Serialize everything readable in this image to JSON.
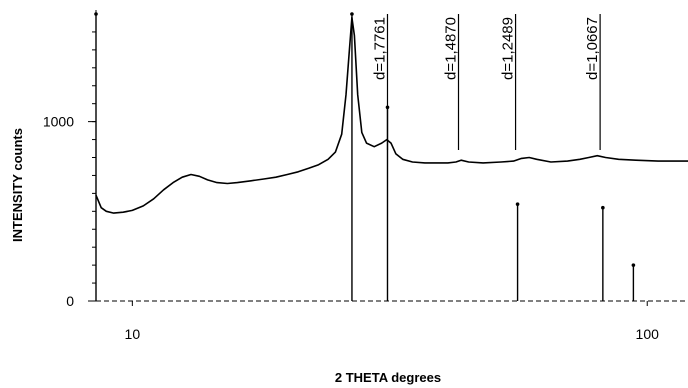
{
  "chart_data": {
    "type": "line",
    "xlabel": "2 THETA degrees",
    "ylabel": "INTENSITY counts",
    "xscale": "log",
    "xlim": [
      8.5,
      120
    ],
    "ylim": [
      0,
      1600
    ],
    "x_ticks": [
      {
        "value": 10,
        "label": "10"
      },
      {
        "value": 100,
        "label": "100"
      }
    ],
    "y_ticks": [
      {
        "value": 0,
        "label": "0"
      },
      {
        "value": 1000,
        "label": "1000"
      }
    ],
    "series": [
      {
        "points": [
          [
            8.5,
            590
          ],
          [
            8.7,
            520
          ],
          [
            8.9,
            500
          ],
          [
            9.2,
            490
          ],
          [
            9.6,
            495
          ],
          [
            10.0,
            505
          ],
          [
            10.5,
            530
          ],
          [
            11.0,
            570
          ],
          [
            11.5,
            620
          ],
          [
            12.0,
            660
          ],
          [
            12.5,
            690
          ],
          [
            13.0,
            705
          ],
          [
            13.5,
            695
          ],
          [
            14.0,
            675
          ],
          [
            14.6,
            660
          ],
          [
            15.3,
            655
          ],
          [
            16.0,
            660
          ],
          [
            17.0,
            670
          ],
          [
            18.0,
            680
          ],
          [
            19.0,
            690
          ],
          [
            20.0,
            705
          ],
          [
            21.0,
            720
          ],
          [
            22.0,
            740
          ],
          [
            23.0,
            760
          ],
          [
            24.0,
            790
          ],
          [
            24.8,
            830
          ],
          [
            25.5,
            930
          ],
          [
            26.0,
            1150
          ],
          [
            26.4,
            1400
          ],
          [
            26.7,
            1580
          ],
          [
            27.0,
            1480
          ],
          [
            27.4,
            1150
          ],
          [
            27.9,
            940
          ],
          [
            28.5,
            880
          ],
          [
            29.5,
            860
          ],
          [
            30.5,
            880
          ],
          [
            31.2,
            900
          ],
          [
            31.8,
            880
          ],
          [
            32.5,
            820
          ],
          [
            33.5,
            790
          ],
          [
            35.0,
            775
          ],
          [
            37.0,
            770
          ],
          [
            39.0,
            770
          ],
          [
            41.0,
            770
          ],
          [
            42.5,
            775
          ],
          [
            43.5,
            785
          ],
          [
            45.0,
            775
          ],
          [
            48.0,
            770
          ],
          [
            52.0,
            775
          ],
          [
            55.0,
            780
          ],
          [
            57.0,
            795
          ],
          [
            59.0,
            800
          ],
          [
            61.0,
            790
          ],
          [
            65.0,
            775
          ],
          [
            70.0,
            780
          ],
          [
            74.0,
            790
          ],
          [
            77.0,
            800
          ],
          [
            80.0,
            810
          ],
          [
            83.0,
            800
          ],
          [
            88.0,
            790
          ],
          [
            95.0,
            785
          ],
          [
            105.0,
            780
          ],
          [
            115.0,
            780
          ],
          [
            120.0,
            780
          ]
        ]
      }
    ],
    "reference_lines": [
      {
        "x": 8.5,
        "intensity": 1600
      },
      {
        "x": 26.7,
        "intensity": 1600
      },
      {
        "x": 31.3,
        "intensity": 1080
      },
      {
        "x": 56.0,
        "intensity": 540
      },
      {
        "x": 82.0,
        "intensity": 520
      },
      {
        "x": 94.0,
        "intensity": 200
      }
    ],
    "annotations": [
      {
        "label": "d=1,7761",
        "x": 31.3
      },
      {
        "label": "d=1,4870",
        "x": 43.0
      },
      {
        "label": "d=1,2489",
        "x": 55.5
      },
      {
        "label": "d=1,0667",
        "x": 81.0
      }
    ],
    "grid": false,
    "legend": "none"
  }
}
